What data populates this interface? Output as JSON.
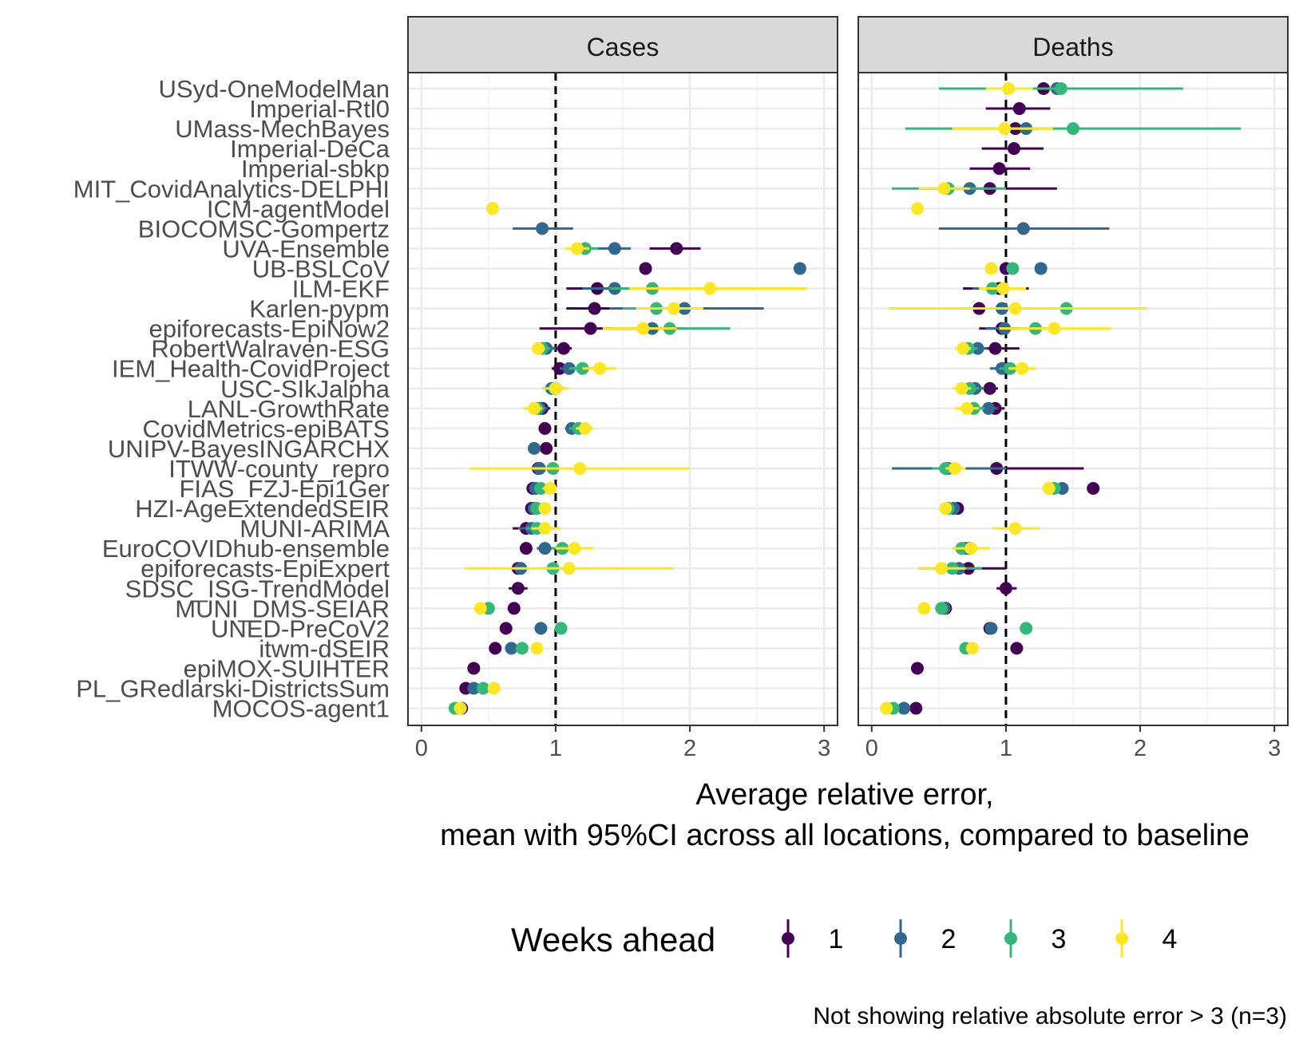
{
  "chart_data": {
    "type": "scatter",
    "panels": [
      "Cases",
      "Deaths"
    ],
    "xlabel_line1": "Average relative error,",
    "xlabel_line2": "mean with 95%CI across all locations, compared to baseline",
    "xticks": [
      "0",
      "1",
      "2",
      "3"
    ],
    "xlim": [
      -0.1,
      3.1
    ],
    "reference_line": 1,
    "grid": true,
    "legend_title": "Weeks ahead",
    "legend_position": "bottom",
    "caption": "Not showing relative absolute error > 3 (n=3)",
    "colors": {
      "1": "#440154",
      "2": "#31688e",
      "3": "#35b779",
      "4": "#fde725"
    },
    "legend": [
      {
        "label": "1",
        "color": "#440154"
      },
      {
        "label": "2",
        "color": "#31688e"
      },
      {
        "label": "3",
        "color": "#35b779"
      },
      {
        "label": "4",
        "color": "#fde725"
      }
    ],
    "models": [
      "USyd-OneModelMan",
      "Imperial-Rtl0",
      "UMass-MechBayes",
      "Imperial-DeCa",
      "Imperial-sbkp",
      "MIT_CovidAnalytics-DELPHI",
      "ICM-agentModel",
      "BIOCOMSC-Gompertz",
      "UVA-Ensemble",
      "UB-BSLCoV",
      "ILM-EKF",
      "Karlen-pypm",
      "epiforecasts-EpiNow2",
      "RobertWalraven-ESG",
      "IEM_Health-CovidProject",
      "USC-SIkJalpha",
      "LANL-GrowthRate",
      "CovidMetrics-epiBATS",
      "UNIPV-BayesINGARCHX",
      "ITWW-county_repro",
      "FIAS_FZJ-Epi1Ger",
      "HZI-AgeExtendedSEIR",
      "MUNI-ARIMA",
      "EuroCOVIDhub-ensemble",
      "epiforecasts-EpiExpert",
      "SDSC_ISG-TrendModel",
      "MUNI_DMS-SEIAR",
      "UNED-PreCoV2",
      "itwm-dSEIR",
      "epiMOX-SUIHTER",
      "PL_GRedlarski-DistrictsSum",
      "MOCOS-agent1"
    ],
    "points": {
      "Cases": [
        [],
        [],
        [],
        [],
        [],
        [],
        [
          [
            4,
            0.53,
            null,
            null
          ]
        ],
        [
          [
            2,
            0.9,
            0.68,
            1.13
          ]
        ],
        [
          [
            1,
            1.9,
            1.7,
            2.08
          ],
          [
            2,
            1.44,
            1.3,
            1.56
          ],
          [
            3,
            1.22,
            1.12,
            1.32
          ],
          [
            4,
            1.16,
            1.07,
            1.25
          ]
        ],
        [
          [
            1,
            1.67,
            null,
            null
          ],
          [
            2,
            2.82,
            null,
            null
          ]
        ],
        [
          [
            1,
            1.31,
            1.08,
            1.5
          ],
          [
            2,
            1.44,
            1.2,
            1.65
          ],
          [
            3,
            1.72,
            1.4,
            1.95
          ],
          [
            4,
            2.15,
            1.55,
            2.87
          ]
        ],
        [
          [
            1,
            1.29,
            1.08,
            1.5
          ],
          [
            2,
            1.96,
            1.4,
            2.55
          ],
          [
            3,
            1.75,
            1.5,
            1.95
          ],
          [
            4,
            1.88,
            1.6,
            2.1
          ]
        ],
        [
          [
            1,
            1.26,
            0.88,
            1.6
          ],
          [
            2,
            1.72,
            1.4,
            1.95
          ],
          [
            3,
            1.85,
            1.4,
            2.3
          ],
          [
            4,
            1.65,
            1.35,
            1.9
          ]
        ],
        [
          [
            1,
            1.06,
            0.97,
            1.12
          ],
          [
            2,
            0.93,
            0.85,
            1.0
          ],
          [
            3,
            0.9,
            0.84,
            0.96
          ],
          [
            4,
            0.87,
            0.82,
            0.92
          ]
        ],
        [
          [
            1,
            1.03,
            0.97,
            1.1
          ],
          [
            2,
            1.1,
            1.03,
            1.17
          ],
          [
            3,
            1.2,
            1.1,
            1.3
          ],
          [
            4,
            1.33,
            1.2,
            1.45
          ]
        ],
        [
          [
            1,
            1.0,
            0.92,
            1.07
          ],
          [
            2,
            0.97,
            0.9,
            1.04
          ],
          [
            3,
            0.99,
            0.92,
            1.06
          ],
          [
            4,
            1.0,
            0.9,
            1.1
          ]
        ],
        [
          [
            1,
            0.9,
            0.84,
            0.96
          ],
          [
            2,
            0.88,
            0.82,
            0.94
          ],
          [
            3,
            0.86,
            0.8,
            0.92
          ],
          [
            4,
            0.84,
            0.76,
            0.9
          ]
        ],
        [
          [
            1,
            0.92,
            null,
            null
          ],
          [
            2,
            1.12,
            1.07,
            1.17
          ],
          [
            3,
            1.17,
            1.1,
            1.22
          ],
          [
            4,
            1.22,
            1.15,
            1.28
          ]
        ],
        [
          [
            1,
            0.93,
            null,
            null
          ],
          [
            2,
            0.84,
            null,
            null
          ]
        ],
        [
          [
            1,
            0.87,
            0.8,
            0.94
          ],
          [
            2,
            0.88,
            0.8,
            0.95
          ],
          [
            3,
            0.98,
            0.9,
            1.05
          ],
          [
            4,
            1.18,
            0.36,
            2.0
          ]
        ],
        [
          [
            1,
            0.83,
            0.79,
            0.87
          ],
          [
            2,
            0.85,
            0.8,
            0.9
          ],
          [
            3,
            0.89,
            0.84,
            0.94
          ],
          [
            4,
            0.96,
            0.9,
            1.0
          ]
        ],
        [
          [
            1,
            0.82,
            0.78,
            0.86
          ],
          [
            2,
            0.84,
            0.8,
            0.88
          ],
          [
            3,
            0.86,
            0.82,
            0.9
          ],
          [
            4,
            0.92,
            0.88,
            0.96
          ]
        ],
        [
          [
            1,
            0.78,
            0.68,
            0.88
          ],
          [
            2,
            0.82,
            0.72,
            0.92
          ],
          [
            3,
            0.86,
            0.78,
            0.95
          ],
          [
            4,
            0.92,
            0.82,
            1.04
          ]
        ],
        [
          [
            1,
            0.78,
            0.74,
            0.82
          ],
          [
            2,
            0.92,
            0.86,
            0.98
          ],
          [
            3,
            1.05,
            0.97,
            1.13
          ],
          [
            4,
            1.14,
            1.0,
            1.28
          ]
        ],
        [
          [
            1,
            0.72,
            0.67,
            0.77
          ],
          [
            2,
            0.74,
            0.68,
            0.8
          ],
          [
            3,
            0.98,
            0.9,
            1.06
          ],
          [
            4,
            1.1,
            0.32,
            1.88
          ]
        ],
        [
          [
            1,
            0.72,
            0.65,
            0.79
          ]
        ],
        [
          [
            1,
            0.69,
            null,
            null
          ],
          [
            3,
            0.5,
            null,
            null
          ],
          [
            4,
            0.44,
            null,
            null
          ]
        ],
        [
          [
            1,
            0.63,
            null,
            null
          ],
          [
            2,
            0.89,
            null,
            null
          ],
          [
            3,
            1.04,
            null,
            null
          ]
        ],
        [
          [
            1,
            0.55,
            null,
            null
          ],
          [
            2,
            0.67,
            null,
            null
          ],
          [
            3,
            0.75,
            null,
            null
          ],
          [
            4,
            0.86,
            null,
            null
          ]
        ],
        [
          [
            1,
            0.39,
            null,
            null
          ]
        ],
        [
          [
            1,
            0.33,
            0.3,
            0.37
          ],
          [
            2,
            0.39,
            0.35,
            0.43
          ],
          [
            3,
            0.46,
            0.42,
            0.5
          ],
          [
            4,
            0.54,
            0.5,
            0.58
          ]
        ],
        [
          [
            1,
            0.3,
            0.27,
            0.33
          ],
          [
            2,
            0.29,
            0.26,
            0.32
          ],
          [
            3,
            0.25,
            0.22,
            0.28
          ],
          [
            4,
            0.29,
            0.26,
            0.32
          ]
        ]
      ],
      "Deaths": [
        [
          [
            1,
            1.28,
            1.2,
            1.36
          ],
          [
            2,
            1.38,
            1.28,
            1.48
          ],
          [
            3,
            1.41,
            0.5,
            2.32
          ],
          [
            4,
            1.02,
            0.85,
            1.2
          ]
        ],
        [
          [
            1,
            1.1,
            0.85,
            1.33
          ]
        ],
        [
          [
            1,
            1.07,
            0.95,
            1.2
          ],
          [
            2,
            1.15,
            1.05,
            1.25
          ],
          [
            3,
            1.5,
            0.25,
            2.75
          ],
          [
            4,
            0.99,
            0.6,
            1.35
          ]
        ],
        [
          [
            1,
            1.06,
            0.82,
            1.28
          ]
        ],
        [
          [
            1,
            0.95,
            0.73,
            1.18
          ]
        ],
        [
          [
            1,
            0.88,
            1.0,
            1.38
          ],
          [
            2,
            0.73,
            0.6,
            0.86
          ],
          [
            3,
            0.57,
            0.15,
            1.0
          ],
          [
            4,
            0.54,
            0.35,
            0.73
          ]
        ],
        [
          [
            4,
            0.34,
            null,
            null
          ]
        ],
        [
          [
            2,
            1.13,
            0.5,
            1.77
          ]
        ],
        [],
        [
          [
            1,
            1.0,
            null,
            null
          ],
          [
            2,
            1.26,
            null,
            null
          ],
          [
            3,
            1.05,
            null,
            null
          ],
          [
            4,
            0.89,
            null,
            null
          ]
        ],
        [
          [
            1,
            0.95,
            0.68,
            1.17
          ],
          [
            2,
            0.9,
            0.75,
            1.0
          ],
          [
            3,
            0.9,
            0.8,
            1.0
          ],
          [
            4,
            0.98,
            0.8,
            1.15
          ]
        ],
        [
          [
            1,
            0.8,
            null,
            null
          ],
          [
            2,
            0.97,
            null,
            null
          ],
          [
            3,
            1.45,
            null,
            null
          ],
          [
            4,
            1.07,
            0.13,
            2.05
          ]
        ],
        [
          [
            1,
            0.97,
            0.8,
            1.1
          ],
          [
            2,
            0.99,
            0.85,
            1.1
          ],
          [
            3,
            1.22,
            1.05,
            1.38
          ],
          [
            4,
            1.36,
            0.95,
            1.78
          ]
        ],
        [
          [
            1,
            0.92,
            0.75,
            1.1
          ],
          [
            2,
            0.79,
            0.72,
            0.86
          ],
          [
            3,
            0.72,
            0.65,
            0.79
          ],
          [
            4,
            0.68,
            0.62,
            0.74
          ]
        ],
        [
          [
            1,
            1.0,
            0.92,
            1.08
          ],
          [
            2,
            0.97,
            0.88,
            1.05
          ],
          [
            3,
            1.03,
            0.95,
            1.1
          ],
          [
            4,
            1.12,
            1.02,
            1.22
          ]
        ],
        [
          [
            1,
            0.88,
            0.82,
            0.94
          ],
          [
            2,
            0.77,
            0.7,
            0.84
          ],
          [
            3,
            0.73,
            0.66,
            0.8
          ],
          [
            4,
            0.67,
            0.6,
            0.74
          ]
        ],
        [
          [
            1,
            0.92,
            0.85,
            0.99
          ],
          [
            2,
            0.87,
            0.8,
            0.94
          ],
          [
            3,
            0.76,
            0.68,
            0.84
          ],
          [
            4,
            0.71,
            0.62,
            0.8
          ]
        ],
        [],
        [],
        [
          [
            1,
            0.93,
            0.9,
            1.58
          ],
          [
            2,
            0.57,
            0.15,
            1.0
          ],
          [
            3,
            0.55,
            0.45,
            0.65
          ],
          [
            4,
            0.62,
            0.55,
            0.7
          ]
        ],
        [
          [
            1,
            1.65,
            null,
            null
          ],
          [
            2,
            1.42,
            null,
            null
          ],
          [
            3,
            1.36,
            null,
            null
          ],
          [
            4,
            1.32,
            null,
            null
          ]
        ],
        [
          [
            1,
            0.64,
            0.6,
            0.68
          ],
          [
            2,
            0.61,
            0.57,
            0.65
          ],
          [
            3,
            0.57,
            0.53,
            0.61
          ],
          [
            4,
            0.55,
            0.51,
            0.59
          ]
        ],
        [
          [
            4,
            1.07,
            0.9,
            1.25
          ]
        ],
        [
          [
            1,
            0.73,
            0.68,
            0.78
          ],
          [
            2,
            0.7,
            0.65,
            0.75
          ],
          [
            3,
            0.67,
            0.6,
            0.74
          ],
          [
            4,
            0.74,
            0.6,
            0.88
          ]
        ],
        [
          [
            1,
            0.72,
            0.6,
            1.0
          ],
          [
            2,
            0.65,
            0.5,
            0.82
          ],
          [
            3,
            0.6,
            0.35,
            0.82
          ],
          [
            4,
            0.52,
            0.35,
            0.7
          ]
        ],
        [
          [
            1,
            1.0,
            0.93,
            1.08
          ]
        ],
        [
          [
            1,
            0.55,
            null,
            null
          ],
          [
            2,
            0.54,
            null,
            null
          ],
          [
            3,
            0.52,
            null,
            null
          ],
          [
            4,
            0.39,
            null,
            null
          ]
        ],
        [
          [
            1,
            0.88,
            null,
            null
          ],
          [
            2,
            0.89,
            null,
            null
          ],
          [
            3,
            1.15,
            null,
            null
          ]
        ],
        [
          [
            1,
            1.08,
            null,
            null
          ],
          [
            3,
            0.7,
            null,
            null
          ],
          [
            4,
            0.75,
            null,
            null
          ]
        ],
        [
          [
            1,
            0.34,
            null,
            null
          ]
        ],
        [],
        [
          [
            1,
            0.33,
            0.3,
            0.36
          ],
          [
            2,
            0.24,
            0.2,
            0.28
          ],
          [
            3,
            0.16,
            0.12,
            0.2
          ],
          [
            4,
            0.11,
            0.07,
            0.15
          ]
        ]
      ]
    }
  }
}
